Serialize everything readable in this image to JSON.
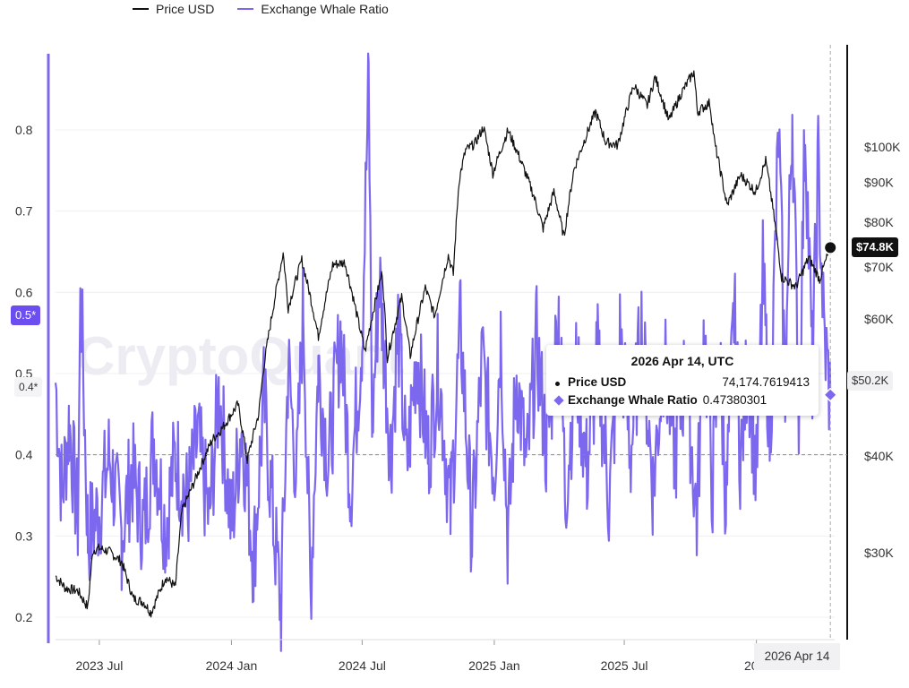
{
  "legend": {
    "price_label": "Price USD",
    "ratio_label": "Exchange Whale Ratio",
    "price_color": "#111111",
    "ratio_color": "#7b68ee"
  },
  "watermark": "CryptoQuant",
  "tooltip": {
    "title": "2026 Apr 14, UTC",
    "price_name": "Price USD",
    "price_value": "74,174.7619413",
    "ratio_name": "Exchange Whale Ratio",
    "ratio_value": "0.47380301"
  },
  "badges": {
    "price_current": "$74.8K",
    "ratio_right": "$50.2K",
    "ratio_left_highlight": "0.5*",
    "ratio_left_crosshair": "0.4*",
    "crosshair_date": "2026 Apr 14"
  },
  "chart_data": {
    "type": "line",
    "x_ticks": [
      "2023 Jul",
      "2024 Jan",
      "2024 Jul",
      "2025 Jan",
      "2025 Jul",
      "20..."
    ],
    "y_left_ticks": [
      "0.2",
      "0.3",
      "0.4",
      "0.5",
      "0.6",
      "0.7",
      "0.8"
    ],
    "y_right_ticks": [
      "$30K",
      "$40K",
      "$60K",
      "$70K",
      "$80K",
      "$90K",
      "$100K"
    ],
    "y_left_range": [
      0.19,
      0.88
    ],
    "y_right_range": [
      20000,
      125000
    ],
    "y_right_scale": "log",
    "x_range": [
      "2023-05-01",
      "2026-04-20"
    ],
    "series": [
      {
        "name": "Price USD",
        "axis": "right",
        "points": [
          [
            "2023-05-01",
            28000
          ],
          [
            "2023-05-15",
            27000
          ],
          [
            "2023-06-01",
            26800
          ],
          [
            "2023-06-15",
            25500
          ],
          [
            "2023-06-22",
            30200
          ],
          [
            "2023-07-01",
            30400
          ],
          [
            "2023-07-15",
            30100
          ],
          [
            "2023-08-01",
            29200
          ],
          [
            "2023-08-17",
            26200
          ],
          [
            "2023-09-01",
            25900
          ],
          [
            "2023-09-11",
            25100
          ],
          [
            "2023-10-01",
            27900
          ],
          [
            "2023-10-15",
            27100
          ],
          [
            "2023-10-24",
            33900
          ],
          [
            "2023-11-09",
            36800
          ],
          [
            "2023-12-05",
            41900
          ],
          [
            "2023-12-20",
            43500
          ],
          [
            "2024-01-10",
            46600
          ],
          [
            "2024-01-23",
            39500
          ],
          [
            "2024-02-08",
            45300
          ],
          [
            "2024-02-15",
            52000
          ],
          [
            "2024-02-28",
            62000
          ],
          [
            "2024-03-13",
            73000
          ],
          [
            "2024-03-20",
            62000
          ],
          [
            "2024-04-08",
            71500
          ],
          [
            "2024-04-20",
            64000
          ],
          [
            "2024-05-01",
            57000
          ],
          [
            "2024-05-21",
            70500
          ],
          [
            "2024-06-07",
            71000
          ],
          [
            "2024-06-24",
            60500
          ],
          [
            "2024-07-05",
            54500
          ],
          [
            "2024-07-29",
            69000
          ],
          [
            "2024-08-05",
            53500
          ],
          [
            "2024-08-25",
            64000
          ],
          [
            "2024-09-06",
            53800
          ],
          [
            "2024-09-27",
            65800
          ],
          [
            "2024-10-10",
            60500
          ],
          [
            "2024-10-29",
            72500
          ],
          [
            "2024-11-05",
            68500
          ],
          [
            "2024-11-13",
            90500
          ],
          [
            "2024-11-22",
            99000
          ],
          [
            "2024-12-05",
            101000
          ],
          [
            "2024-12-17",
            106000
          ],
          [
            "2024-12-30",
            92500
          ],
          [
            "2025-01-20",
            105000
          ],
          [
            "2025-02-03",
            98000
          ],
          [
            "2025-02-25",
            86500
          ],
          [
            "2025-03-10",
            78500
          ],
          [
            "2025-03-25",
            87500
          ],
          [
            "2025-04-08",
            76500
          ],
          [
            "2025-04-22",
            93500
          ],
          [
            "2025-05-22",
            111000
          ],
          [
            "2025-06-05",
            101500
          ],
          [
            "2025-06-22",
            100500
          ],
          [
            "2025-07-14",
            120000
          ],
          [
            "2025-08-02",
            113000
          ],
          [
            "2025-08-13",
            123000
          ],
          [
            "2025-09-01",
            108000
          ],
          [
            "2025-09-18",
            117000
          ],
          [
            "2025-10-06",
            125000
          ],
          [
            "2025-10-11",
            111000
          ],
          [
            "2025-10-28",
            114000
          ],
          [
            "2025-11-04",
            101000
          ],
          [
            "2025-11-21",
            84000
          ],
          [
            "2025-12-10",
            92000
          ],
          [
            "2025-12-31",
            87500
          ],
          [
            "2026-01-14",
            96000
          ],
          [
            "2026-02-05",
            68000
          ],
          [
            "2026-02-25",
            66000
          ],
          [
            "2026-03-15",
            72000
          ],
          [
            "2026-03-30",
            67500
          ],
          [
            "2026-04-14",
            74175
          ]
        ]
      },
      {
        "name": "Exchange Whale Ratio",
        "axis": "left",
        "points": [
          [
            "2023-05-01",
            0.49
          ],
          [
            "2023-05-10",
            0.35
          ],
          [
            "2023-05-20",
            0.44
          ],
          [
            "2023-06-01",
            0.32
          ],
          [
            "2023-06-05",
            0.61
          ],
          [
            "2023-06-15",
            0.3
          ],
          [
            "2023-07-01",
            0.33
          ],
          [
            "2023-07-15",
            0.4
          ],
          [
            "2023-08-01",
            0.3
          ],
          [
            "2023-08-15",
            0.38
          ],
          [
            "2023-09-01",
            0.31
          ],
          [
            "2023-09-15",
            0.42
          ],
          [
            "2023-10-01",
            0.31
          ],
          [
            "2023-10-15",
            0.4
          ],
          [
            "2023-11-01",
            0.34
          ],
          [
            "2023-11-15",
            0.42
          ],
          [
            "2023-12-01",
            0.32
          ],
          [
            "2023-12-15",
            0.48
          ],
          [
            "2024-01-01",
            0.31
          ],
          [
            "2024-01-15",
            0.44
          ],
          [
            "2024-02-01",
            0.27
          ],
          [
            "2024-02-15",
            0.47
          ],
          [
            "2024-03-01",
            0.3
          ],
          [
            "2024-03-10",
            0.21
          ],
          [
            "2024-03-20",
            0.51
          ],
          [
            "2024-04-01",
            0.37
          ],
          [
            "2024-04-10",
            0.59
          ],
          [
            "2024-04-20",
            0.23
          ],
          [
            "2024-05-01",
            0.51
          ],
          [
            "2024-05-15",
            0.39
          ],
          [
            "2024-06-01",
            0.55
          ],
          [
            "2024-06-15",
            0.36
          ],
          [
            "2024-07-01",
            0.55
          ],
          [
            "2024-07-10",
            0.86
          ],
          [
            "2024-07-15",
            0.44
          ],
          [
            "2024-07-25",
            0.62
          ],
          [
            "2024-08-10",
            0.4
          ],
          [
            "2024-08-20",
            0.56
          ],
          [
            "2024-09-01",
            0.38
          ],
          [
            "2024-09-15",
            0.53
          ],
          [
            "2024-10-01",
            0.4
          ],
          [
            "2024-10-15",
            0.51
          ],
          [
            "2024-11-01",
            0.33
          ],
          [
            "2024-11-15",
            0.56
          ],
          [
            "2024-12-01",
            0.3
          ],
          [
            "2024-12-15",
            0.52
          ],
          [
            "2025-01-01",
            0.38
          ],
          [
            "2025-01-10",
            0.55
          ],
          [
            "2025-01-20",
            0.29
          ],
          [
            "2025-02-01",
            0.5
          ],
          [
            "2025-02-15",
            0.38
          ],
          [
            "2025-03-01",
            0.54
          ],
          [
            "2025-03-15",
            0.4
          ],
          [
            "2025-04-01",
            0.58
          ],
          [
            "2025-04-10",
            0.35
          ],
          [
            "2025-04-25",
            0.51
          ],
          [
            "2025-05-10",
            0.38
          ],
          [
            "2025-05-25",
            0.52
          ],
          [
            "2025-06-10",
            0.34
          ],
          [
            "2025-06-25",
            0.55
          ],
          [
            "2025-07-10",
            0.4
          ],
          [
            "2025-07-25",
            0.56
          ],
          [
            "2025-08-10",
            0.36
          ],
          [
            "2025-08-25",
            0.52
          ],
          [
            "2025-09-10",
            0.4
          ],
          [
            "2025-09-25",
            0.51
          ],
          [
            "2025-10-10",
            0.32
          ],
          [
            "2025-10-20",
            0.56
          ],
          [
            "2025-11-01",
            0.36
          ],
          [
            "2025-11-10",
            0.53
          ],
          [
            "2025-11-20",
            0.34
          ],
          [
            "2025-12-01",
            0.58
          ],
          [
            "2025-12-10",
            0.39
          ],
          [
            "2025-12-20",
            0.52
          ],
          [
            "2026-01-01",
            0.37
          ],
          [
            "2026-01-10",
            0.62
          ],
          [
            "2026-01-20",
            0.42
          ],
          [
            "2026-02-01",
            0.8
          ],
          [
            "2026-02-10",
            0.48
          ],
          [
            "2026-02-20",
            0.83
          ],
          [
            "2026-03-01",
            0.45
          ],
          [
            "2026-03-10",
            0.81
          ],
          [
            "2026-03-20",
            0.5
          ],
          [
            "2026-03-28",
            0.76
          ],
          [
            "2026-04-05",
            0.55
          ],
          [
            "2026-04-14",
            0.47
          ]
        ]
      }
    ]
  }
}
